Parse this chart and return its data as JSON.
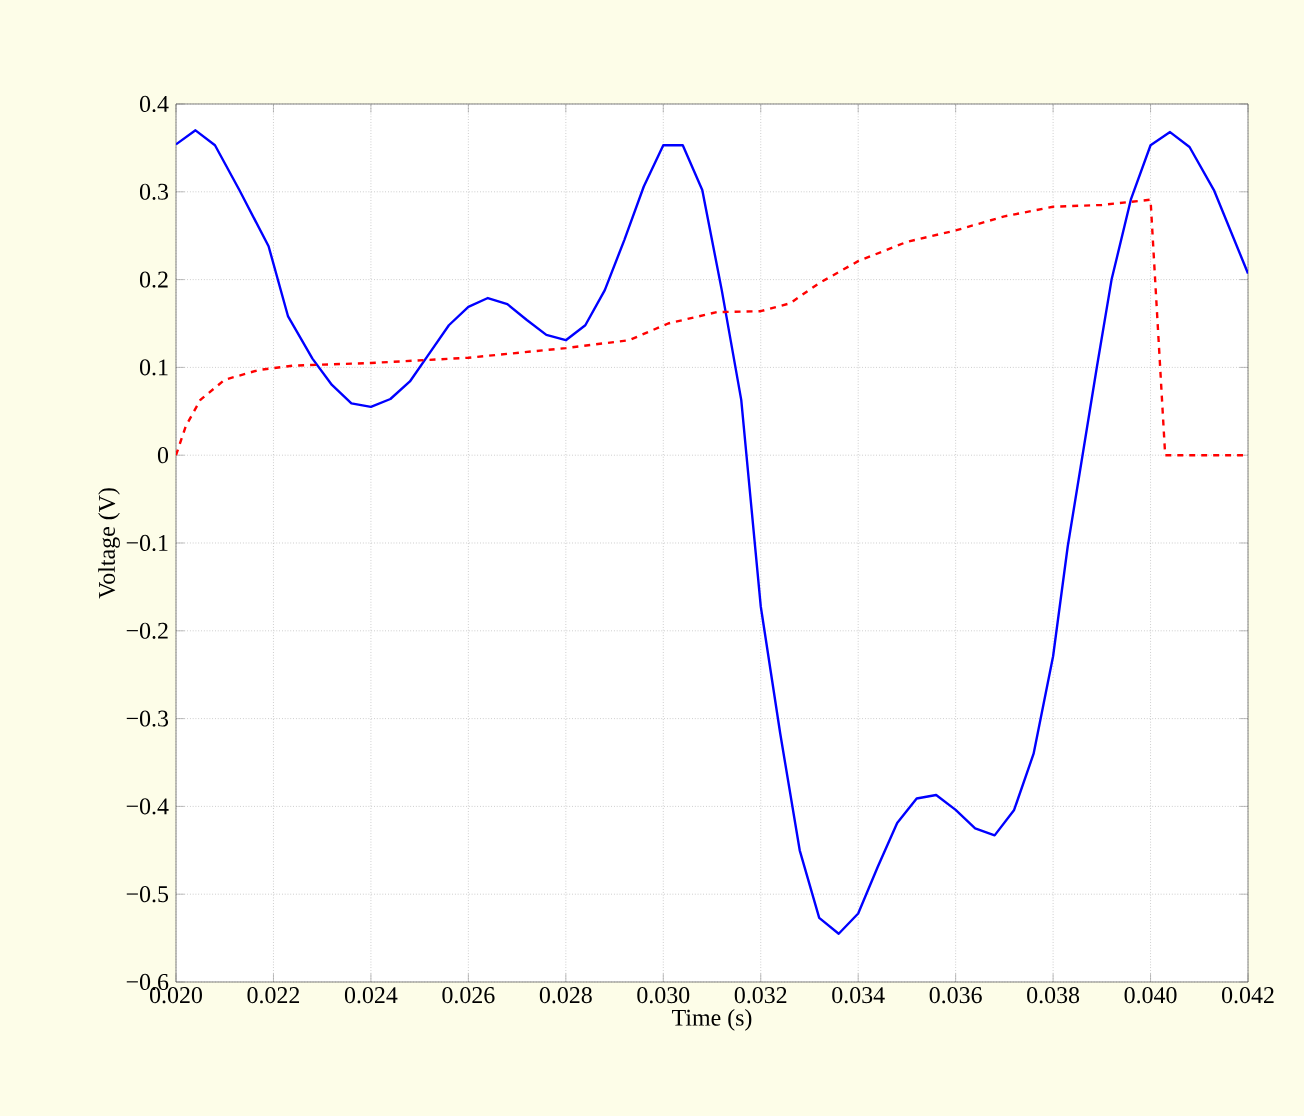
{
  "chart_data": {
    "type": "line",
    "xlabel": "Time (s)",
    "ylabel": "Voltage (V)",
    "xlim": [
      0.02,
      0.042
    ],
    "ylim": [
      -0.6,
      0.4
    ],
    "xticks": [
      {
        "value": 0.02,
        "label": "0.020"
      },
      {
        "value": 0.022,
        "label": "0.022"
      },
      {
        "value": 0.024,
        "label": "0.024"
      },
      {
        "value": 0.026,
        "label": "0.026"
      },
      {
        "value": 0.028,
        "label": "0.028"
      },
      {
        "value": 0.03,
        "label": "0.030"
      },
      {
        "value": 0.032,
        "label": "0.032"
      },
      {
        "value": 0.034,
        "label": "0.034"
      },
      {
        "value": 0.036,
        "label": "0.036"
      },
      {
        "value": 0.038,
        "label": "0.038"
      },
      {
        "value": 0.04,
        "label": "0.040"
      },
      {
        "value": 0.042,
        "label": "0.042"
      }
    ],
    "yticks": [
      {
        "value": -0.6,
        "label": "−0.6"
      },
      {
        "value": -0.5,
        "label": "−0.5"
      },
      {
        "value": -0.4,
        "label": "−0.4"
      },
      {
        "value": -0.3,
        "label": "−0.3"
      },
      {
        "value": -0.2,
        "label": "−0.2"
      },
      {
        "value": -0.1,
        "label": "−0.1"
      },
      0,
      0.1,
      0.2,
      0.3,
      0.4
    ],
    "grid": true,
    "marker": "none",
    "series": [
      {
        "color": "#0000ff",
        "line_style": "solid",
        "x": [
          0.02,
          0.0204,
          0.0208,
          0.0213,
          0.0219,
          0.0223,
          0.0228,
          0.0232,
          0.0236,
          0.024,
          0.0244,
          0.0248,
          0.0252,
          0.0256,
          0.026,
          0.0264,
          0.0268,
          0.0272,
          0.0276,
          0.028,
          0.0284,
          0.0288,
          0.0292,
          0.0296,
          0.03,
          0.0304,
          0.0308,
          0.0312,
          0.0316,
          0.032,
          0.0324,
          0.0328,
          0.0332,
          0.0336,
          0.034,
          0.0344,
          0.0348,
          0.0352,
          0.0356,
          0.036,
          0.0364,
          0.0368,
          0.0372,
          0.0376,
          0.038,
          0.0383,
          0.0389,
          0.0392,
          0.0396,
          0.04,
          0.0404,
          0.0408,
          0.0413,
          0.042
        ],
        "values": [
          0.354,
          0.37,
          0.353,
          0.302,
          0.238,
          0.158,
          0.11,
          0.08,
          0.059,
          0.055,
          0.064,
          0.084,
          0.116,
          0.148,
          0.169,
          0.179,
          0.172,
          0.154,
          0.137,
          0.131,
          0.148,
          0.188,
          0.245,
          0.306,
          0.353,
          0.353,
          0.302,
          0.188,
          0.063,
          -0.172,
          -0.317,
          -0.45,
          -0.527,
          -0.545,
          -0.522,
          -0.469,
          -0.419,
          -0.391,
          -0.387,
          -0.404,
          -0.425,
          -0.433,
          -0.404,
          -0.34,
          -0.229,
          -0.104,
          0.101,
          0.2,
          0.292,
          0.353,
          0.368,
          0.351,
          0.302,
          0.207
        ]
      },
      {
        "color": "#ff0000",
        "line_style": "dashed",
        "x": [
          0.02,
          0.0202,
          0.0205,
          0.021,
          0.0217,
          0.0224,
          0.024,
          0.026,
          0.028,
          0.0293,
          0.0301,
          0.0311,
          0.032,
          0.0326,
          0.0332,
          0.034,
          0.035,
          0.036,
          0.037,
          0.038,
          0.039,
          0.04,
          0.0403,
          0.042
        ],
        "values": [
          0,
          0.033,
          0.063,
          0.086,
          0.097,
          0.102,
          0.105,
          0.111,
          0.122,
          0.131,
          0.15,
          0.163,
          0.164,
          0.173,
          0.196,
          0.221,
          0.243,
          0.256,
          0.272,
          0.283,
          0.285,
          0.291,
          0,
          0
        ]
      }
    ]
  }
}
